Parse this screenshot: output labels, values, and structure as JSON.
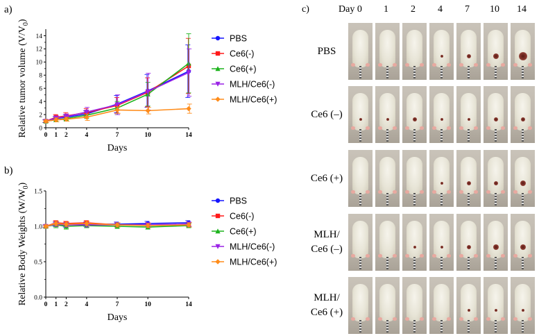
{
  "colors": {
    "PBS": "#1515ff",
    "Ce6(-)": "#ff1a1a",
    "Ce6(+)": "#1db31d",
    "MLH/Ce6(-)": "#9a22e6",
    "MLH/Ce6(+)": "#ff8c1a"
  },
  "chart_data": [
    {
      "type": "line",
      "panel_label": "a)",
      "title": "",
      "xlabel": "Days",
      "ylabel": "Relative tumor volume (V/V0)",
      "ylabel_main": "Relative tumor volume (V/V",
      "ylabel_sub": "0",
      "ylabel_end": ")",
      "x": [
        0,
        1,
        2,
        4,
        7,
        10,
        14
      ],
      "xlim": [
        0,
        14
      ],
      "ylim": [
        0,
        15
      ],
      "xticks": [
        "0",
        "1",
        "2",
        "4",
        "7",
        "10",
        "14"
      ],
      "yticks": [
        0,
        2,
        4,
        6,
        8,
        10,
        12,
        14
      ],
      "series": [
        {
          "name": "PBS",
          "values": [
            1.0,
            1.4,
            1.6,
            2.1,
            3.6,
            5.6,
            8.6
          ],
          "errors": [
            0.2,
            0.3,
            0.4,
            0.5,
            1.3,
            2.5,
            4.0
          ]
        },
        {
          "name": "Ce6(-)",
          "values": [
            1.0,
            1.6,
            1.8,
            2.3,
            3.4,
            5.4,
            9.4
          ],
          "errors": [
            0.2,
            0.4,
            0.5,
            0.6,
            1.2,
            2.2,
            4.2
          ]
        },
        {
          "name": "Ce6(+)",
          "values": [
            1.0,
            1.2,
            1.4,
            1.9,
            3.0,
            5.1,
            9.8
          ],
          "errors": [
            0.2,
            0.3,
            0.4,
            0.5,
            1.0,
            1.8,
            4.5
          ]
        },
        {
          "name": "MLH/Ce6(-)",
          "values": [
            1.0,
            1.5,
            1.7,
            2.4,
            3.5,
            5.5,
            8.4
          ],
          "errors": [
            0.2,
            0.3,
            0.4,
            0.7,
            1.5,
            2.8,
            3.6
          ]
        },
        {
          "name": "MLH/Ce6(+)",
          "values": [
            1.0,
            1.2,
            1.3,
            1.6,
            2.7,
            2.6,
            2.9
          ],
          "errors": [
            0.2,
            0.3,
            0.3,
            0.5,
            0.5,
            0.5,
            0.7
          ]
        }
      ]
    },
    {
      "type": "line",
      "panel_label": "b)",
      "title": "",
      "xlabel": "Days",
      "ylabel": "Relative Body Weights (W/W0)",
      "ylabel_main": "Relative Body Weights (W/W",
      "ylabel_sub": "0",
      "ylabel_end": ")",
      "x": [
        0,
        1,
        2,
        4,
        7,
        10,
        14
      ],
      "xlim": [
        0,
        14
      ],
      "ylim": [
        0,
        1.5
      ],
      "xticks": [
        "0",
        "1",
        "2",
        "4",
        "7",
        "10",
        "14"
      ],
      "yticks": [
        "0.0",
        "0.5",
        "1.0",
        "1.5"
      ],
      "series": [
        {
          "name": "PBS",
          "values": [
            1.0,
            1.03,
            1.02,
            1.03,
            1.03,
            1.04,
            1.05
          ],
          "errors": [
            0.02,
            0.03,
            0.03,
            0.03,
            0.03,
            0.03,
            0.03
          ]
        },
        {
          "name": "Ce6(-)",
          "values": [
            1.0,
            1.05,
            1.04,
            1.05,
            1.02,
            1.02,
            1.03
          ],
          "errors": [
            0.02,
            0.03,
            0.03,
            0.03,
            0.03,
            0.03,
            0.03
          ]
        },
        {
          "name": "Ce6(+)",
          "values": [
            1.0,
            1.02,
            1.0,
            1.01,
            1.0,
            0.99,
            1.01
          ],
          "errors": [
            0.02,
            0.04,
            0.04,
            0.03,
            0.03,
            0.03,
            0.03
          ]
        },
        {
          "name": "MLH/Ce6(-)",
          "values": [
            1.0,
            1.03,
            1.02,
            1.02,
            1.02,
            1.02,
            1.03
          ],
          "errors": [
            0.02,
            0.03,
            0.03,
            0.03,
            0.03,
            0.03,
            0.03
          ]
        },
        {
          "name": "MLH/Ce6(+)",
          "values": [
            1.0,
            1.04,
            1.03,
            1.04,
            1.02,
            1.01,
            1.02
          ],
          "errors": [
            0.02,
            0.03,
            0.03,
            0.03,
            0.03,
            0.03,
            0.03
          ]
        }
      ]
    }
  ],
  "photos": {
    "panel_label": "c)",
    "days": [
      "Day 0",
      "1",
      "2",
      "4",
      "7",
      "10",
      "14"
    ],
    "groups": [
      {
        "label_lines": [
          "PBS"
        ],
        "tumor": [
          0,
          0,
          0,
          1,
          2,
          3,
          5
        ]
      },
      {
        "label_lines": [
          "Ce6 (–)"
        ],
        "tumor": [
          1,
          1,
          2,
          1,
          1,
          2,
          2
        ]
      },
      {
        "label_lines": [
          "Ce6 (+)"
        ],
        "tumor": [
          0,
          0,
          0,
          1,
          2,
          2,
          3
        ]
      },
      {
        "label_lines": [
          "MLH/",
          "Ce6 (–)"
        ],
        "tumor": [
          0,
          0,
          1,
          1,
          2,
          3,
          3
        ]
      },
      {
        "label_lines": [
          "MLH/",
          "Ce6 (+)"
        ],
        "tumor": [
          0,
          0,
          0,
          0,
          1,
          1,
          1
        ]
      }
    ]
  }
}
